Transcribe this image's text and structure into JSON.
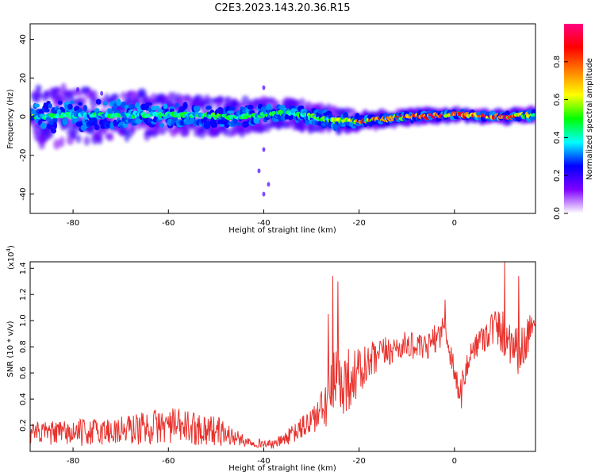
{
  "title": "C2E3.2023.143.20.36.R15",
  "chart_data": [
    {
      "type": "heatmap",
      "xlabel": "Height of straight line (km)",
      "ylabel": "Frequency (Hz)",
      "xlim": [
        -89,
        17
      ],
      "ylim": [
        -50,
        48
      ],
      "x_ticks": [
        -80,
        -60,
        -40,
        -20,
        0
      ],
      "y_ticks": [
        40,
        20,
        0,
        -20,
        -40
      ],
      "grid": false,
      "colorbar": {
        "label": "Normalized spectral amplitude",
        "range": [
          0,
          1
        ],
        "ticks": [
          0.0,
          0.2,
          0.4,
          0.6,
          0.8
        ],
        "colors": [
          "#ffffff",
          "#8000ff",
          "#0000ff",
          "#00ffff",
          "#00ff00",
          "#ffff00",
          "#ff8000",
          "#ff0000",
          "#ff0080"
        ]
      },
      "ridge": {
        "description_points": [
          {
            "x": -88,
            "center": 0,
            "spread": 14,
            "amp": 0.45
          },
          {
            "x": -75,
            "center": 1,
            "spread": 12,
            "amp": 0.45
          },
          {
            "x": -60,
            "center": 1,
            "spread": 9,
            "amp": 0.5
          },
          {
            "x": -45,
            "center": 0,
            "spread": 8,
            "amp": 0.5
          },
          {
            "x": -35,
            "center": 2,
            "spread": 6,
            "amp": 0.5
          },
          {
            "x": -25,
            "center": -2,
            "spread": 6,
            "amp": 0.55
          },
          {
            "x": -18,
            "center": -2,
            "spread": 3,
            "amp": 0.8
          },
          {
            "x": -10,
            "center": 0,
            "spread": 3,
            "amp": 0.85
          },
          {
            "x": 0,
            "center": 1,
            "spread": 2,
            "amp": 0.95
          },
          {
            "x": 10,
            "center": 0,
            "spread": 2,
            "amp": 0.95
          },
          {
            "x": 17,
            "center": 1,
            "spread": 3,
            "amp": 0.6
          }
        ]
      }
    },
    {
      "type": "line",
      "xlabel": "Height of straight line (km)",
      "ylabel": "SNR (10 * v/v)",
      "multiplier_label": "(x10",
      "multiplier_exp": "4",
      "xlim": [
        -89,
        17
      ],
      "ylim": [
        0.0,
        1.45
      ],
      "x_ticks": [
        -80,
        -60,
        -40,
        -20,
        0
      ],
      "y_ticks": [
        0.2,
        0.4,
        0.6,
        0.8,
        1.0,
        1.2,
        1.4
      ],
      "grid": false,
      "series": [
        {
          "color": "#e8322d",
          "envelope": [
            {
              "x": -89,
              "v": 0.14,
              "noise": 0.08
            },
            {
              "x": -80,
              "v": 0.14,
              "noise": 0.1
            },
            {
              "x": -70,
              "v": 0.16,
              "noise": 0.12
            },
            {
              "x": -60,
              "v": 0.2,
              "noise": 0.14
            },
            {
              "x": -50,
              "v": 0.16,
              "noise": 0.12
            },
            {
              "x": -44,
              "v": 0.08,
              "noise": 0.04
            },
            {
              "x": -38,
              "v": 0.05,
              "noise": 0.03
            },
            {
              "x": -33,
              "v": 0.15,
              "noise": 0.08
            },
            {
              "x": -28,
              "v": 0.3,
              "noise": 0.15
            },
            {
              "x": -25,
              "v": 0.5,
              "noise": 0.3
            },
            {
              "x": -20,
              "v": 0.6,
              "noise": 0.2
            },
            {
              "x": -15,
              "v": 0.75,
              "noise": 0.12
            },
            {
              "x": -10,
              "v": 0.82,
              "noise": 0.1
            },
            {
              "x": -6,
              "v": 0.78,
              "noise": 0.1
            },
            {
              "x": -2,
              "v": 0.95,
              "noise": 0.12
            },
            {
              "x": 1,
              "v": 0.45,
              "noise": 0.1
            },
            {
              "x": 4,
              "v": 0.8,
              "noise": 0.1
            },
            {
              "x": 8,
              "v": 0.95,
              "noise": 0.15
            },
            {
              "x": 11,
              "v": 0.9,
              "noise": 0.2
            },
            {
              "x": 14,
              "v": 0.75,
              "noise": 0.2
            },
            {
              "x": 17,
              "v": 1.05,
              "noise": 0.08
            }
          ],
          "spikes": [
            {
              "x": -25.5,
              "v": 1.34
            },
            {
              "x": -24.5,
              "v": 1.3
            },
            {
              "x": -26.5,
              "v": 1.05
            },
            {
              "x": -2,
              "v": 1.16
            },
            {
              "x": 10.5,
              "v": 1.45
            },
            {
              "x": 13.5,
              "v": 1.34
            },
            {
              "x": 1.5,
              "v": 0.33
            }
          ]
        }
      ]
    }
  ]
}
